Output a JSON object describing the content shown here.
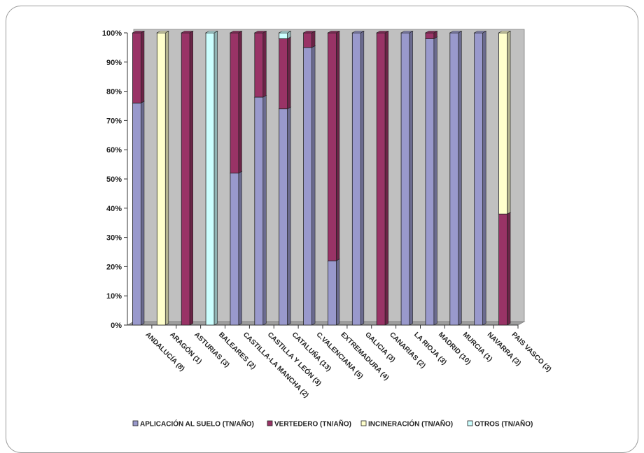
{
  "chart_data": {
    "type": "bar",
    "stacked": true,
    "percent": true,
    "title": "",
    "xlabel": "",
    "ylabel": "",
    "ylim": [
      0,
      100
    ],
    "y_ticks": [
      "0%",
      "10%",
      "20%",
      "30%",
      "40%",
      "50%",
      "60%",
      "70%",
      "80%",
      "90%",
      "100%"
    ],
    "categories": [
      "ANDALUCÍA (8)",
      "ARAGÓN (1)",
      "ASTURIAS (3)",
      "BALEARES (2)",
      "CASTILLA-LA MANCHA (2)",
      "CASTILLA Y LEÓN (3)",
      "CATALUÑA (13)",
      "C.VALENCIANA (5)",
      "EXTREMADURA (4)",
      "GALICIA (3)",
      "CANARIAS (2)",
      "LA RIOJA (3)",
      "MADRID (10)",
      "MURCIA (1)",
      "NAVARRA (3)",
      "PAIS VASCO (3)"
    ],
    "series": [
      {
        "name": "APLICACIÓN AL SUELO  (TN/AÑO)",
        "color": "#9999cc",
        "values": [
          76,
          0,
          0,
          0,
          52,
          78,
          74,
          95,
          22,
          100,
          0,
          100,
          98,
          100,
          100,
          0
        ]
      },
      {
        "name": "VERTEDERO (TN/AÑO)",
        "color": "#993366",
        "values": [
          24,
          0,
          100,
          0,
          48,
          22,
          24,
          5,
          78,
          0,
          100,
          0,
          2,
          0,
          0,
          38
        ]
      },
      {
        "name": "INCINERACIÓN (TN/AÑO)",
        "color": "#ffffcc",
        "values": [
          0,
          100,
          0,
          0,
          0,
          0,
          0,
          0,
          0,
          0,
          0,
          0,
          0,
          0,
          0,
          62
        ]
      },
      {
        "name": "OTROS (TN/AÑO)",
        "color": "#ccffff",
        "values": [
          0,
          0,
          0,
          100,
          0,
          0,
          2,
          0,
          0,
          0,
          0,
          0,
          0,
          0,
          0,
          0
        ]
      }
    ],
    "grid": false,
    "legend_position": "bottom",
    "wall_color": "#c0c0c0"
  }
}
